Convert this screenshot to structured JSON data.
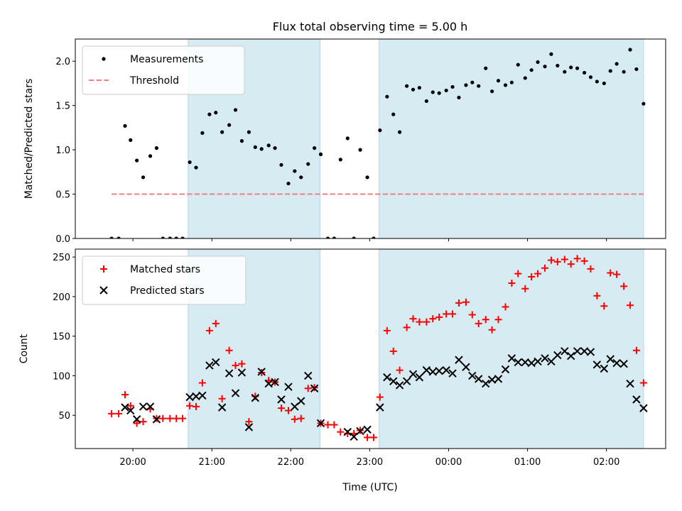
{
  "figure": {
    "title": "Flux total observing time = 5.00 h",
    "xlabel": "Time (UTC)"
  },
  "chart_data": [
    {
      "type": "scatter",
      "ylabel": "Matched/Predicted stars",
      "ylim": [
        0,
        2.25
      ],
      "yticks": [
        0.0,
        0.5,
        1.0,
        1.5,
        2.0
      ],
      "xlim": [
        19.27,
        26.75
      ],
      "grid": false,
      "legend": "upper-left",
      "shaded_spans": [
        [
          20.7,
          22.37
        ],
        [
          23.12,
          26.47
        ]
      ],
      "series": [
        {
          "name": "Measurements",
          "kind": "dots",
          "color": "#000000",
          "x": [
            19.73,
            19.82,
            19.9,
            19.97,
            20.05,
            20.13,
            20.22,
            20.3,
            20.38,
            20.47,
            20.55,
            20.63,
            20.72,
            20.8,
            20.88,
            20.97,
            21.05,
            21.13,
            21.22,
            21.3,
            21.38,
            21.47,
            21.55,
            21.63,
            21.72,
            21.8,
            21.88,
            21.97,
            22.05,
            22.13,
            22.22,
            22.3,
            22.38,
            22.47,
            22.55,
            22.63,
            22.72,
            22.8,
            22.88,
            22.97,
            23.05,
            23.13,
            23.22,
            23.3,
            23.38,
            23.47,
            23.55,
            23.63,
            23.72,
            23.8,
            23.88,
            23.97,
            24.05,
            24.13,
            24.22,
            24.3,
            24.38,
            24.47,
            24.55,
            24.63,
            24.72,
            24.8,
            24.88,
            24.97,
            25.05,
            25.13,
            25.22,
            25.3,
            25.38,
            25.47,
            25.55,
            25.63,
            25.72,
            25.8,
            25.88,
            25.97,
            26.05,
            26.13,
            26.22,
            26.3,
            26.38,
            26.47
          ],
          "y": [
            0.0,
            0.0,
            1.27,
            1.11,
            0.88,
            0.69,
            0.93,
            1.02,
            0.0,
            0.0,
            0.0,
            0.0,
            0.86,
            0.8,
            1.19,
            1.4,
            1.42,
            1.2,
            1.28,
            1.45,
            1.1,
            1.2,
            1.03,
            1.01,
            1.05,
            1.02,
            0.83,
            0.62,
            0.76,
            0.69,
            0.84,
            1.02,
            0.95,
            0.0,
            0.0,
            0.89,
            1.13,
            0.0,
            1.0,
            0.69,
            0.0,
            1.22,
            1.6,
            1.4,
            1.2,
            1.72,
            1.68,
            1.7,
            1.55,
            1.65,
            1.64,
            1.67,
            1.71,
            1.59,
            1.73,
            1.76,
            1.72,
            1.92,
            1.66,
            1.78,
            1.73,
            1.76,
            1.96,
            1.81,
            1.9,
            1.99,
            1.94,
            2.08,
            1.95,
            1.88,
            1.93,
            1.92,
            1.87,
            1.82,
            1.77,
            1.75,
            1.89,
            1.97,
            1.88,
            2.13,
            1.91,
            1.52
          ]
        },
        {
          "name": "Threshold",
          "kind": "dashed-line",
          "color": "#f08080",
          "x": [
            19.73,
            26.47
          ],
          "y": [
            0.5,
            0.5
          ]
        }
      ]
    },
    {
      "type": "scatter",
      "ylabel": "Count",
      "ylim": [
        8,
        260
      ],
      "yticks": [
        50,
        100,
        150,
        200,
        250
      ],
      "xlim": [
        19.27,
        26.75
      ],
      "xticks": [
        20,
        21,
        22,
        23,
        24,
        25,
        26
      ],
      "xticklabels": [
        "20:00",
        "21:00",
        "22:00",
        "23:00",
        "00:00",
        "01:00",
        "02:00"
      ],
      "grid": false,
      "legend": "upper-left",
      "shaded_spans": [
        [
          20.7,
          22.37
        ],
        [
          23.12,
          26.47
        ]
      ],
      "series": [
        {
          "name": "Matched stars",
          "marker": "plus",
          "color": "#ff0000",
          "x": [
            19.73,
            19.82,
            19.9,
            19.97,
            20.05,
            20.13,
            20.22,
            20.3,
            20.38,
            20.47,
            20.55,
            20.63,
            20.72,
            20.8,
            20.88,
            20.97,
            21.05,
            21.13,
            21.22,
            21.3,
            21.38,
            21.47,
            21.55,
            21.63,
            21.72,
            21.8,
            21.88,
            21.97,
            22.05,
            22.13,
            22.22,
            22.3,
            22.38,
            22.47,
            22.55,
            22.63,
            22.72,
            22.8,
            22.88,
            22.97,
            23.05,
            23.13,
            23.22,
            23.3,
            23.38,
            23.47,
            23.55,
            23.63,
            23.72,
            23.8,
            23.88,
            23.97,
            24.05,
            24.13,
            24.22,
            24.3,
            24.38,
            24.47,
            24.55,
            24.63,
            24.72,
            24.8,
            24.88,
            24.97,
            25.05,
            25.13,
            25.22,
            25.3,
            25.38,
            25.47,
            25.55,
            25.63,
            25.72,
            25.8,
            25.88,
            25.97,
            26.05,
            26.13,
            26.22,
            26.3,
            26.38,
            26.47
          ],
          "y": [
            52,
            52,
            76,
            62,
            40,
            42,
            58,
            46,
            46,
            46,
            46,
            46,
            62,
            61,
            91,
            157,
            166,
            71,
            132,
            113,
            115,
            42,
            74,
            104,
            94,
            92,
            59,
            56,
            45,
            46,
            84,
            85,
            40,
            38,
            38,
            29,
            27,
            27,
            31,
            22,
            22,
            73,
            157,
            131,
            107,
            161,
            172,
            168,
            168,
            172,
            174,
            178,
            178,
            192,
            193,
            177,
            166,
            171,
            158,
            171,
            187,
            217,
            229,
            210,
            225,
            229,
            236,
            246,
            244,
            247,
            241,
            248,
            245,
            235,
            201,
            188,
            230,
            228,
            213,
            189,
            132,
            91
          ]
        },
        {
          "name": "Predicted stars",
          "marker": "x",
          "color": "#000000",
          "x": [
            19.9,
            19.97,
            20.05,
            20.13,
            20.22,
            20.3,
            20.72,
            20.8,
            20.88,
            20.97,
            21.05,
            21.13,
            21.22,
            21.3,
            21.38,
            21.47,
            21.55,
            21.63,
            21.72,
            21.8,
            21.88,
            21.97,
            22.05,
            22.13,
            22.22,
            22.3,
            22.38,
            22.72,
            22.8,
            22.88,
            22.97,
            23.13,
            23.22,
            23.3,
            23.38,
            23.47,
            23.55,
            23.63,
            23.72,
            23.8,
            23.88,
            23.97,
            24.05,
            24.13,
            24.22,
            24.3,
            24.38,
            24.47,
            24.55,
            24.63,
            24.72,
            24.8,
            24.88,
            24.97,
            25.05,
            25.13,
            25.22,
            25.3,
            25.38,
            25.47,
            25.55,
            25.63,
            25.72,
            25.8,
            25.88,
            25.97,
            26.05,
            26.13,
            26.22,
            26.3,
            26.38,
            26.47
          ],
          "y": [
            60,
            56,
            45,
            61,
            61,
            45,
            73,
            74,
            75,
            113,
            117,
            60,
            103,
            78,
            104,
            35,
            72,
            105,
            90,
            92,
            70,
            86,
            61,
            68,
            100,
            84,
            40,
            29,
            23,
            30,
            32,
            60,
            98,
            93,
            88,
            93,
            102,
            98,
            107,
            105,
            106,
            107,
            103,
            120,
            111,
            100,
            96,
            90,
            95,
            96,
            108,
            122,
            117,
            117,
            116,
            118,
            122,
            118,
            126,
            131,
            125,
            131,
            131,
            130,
            114,
            109,
            121,
            116,
            115,
            90,
            70,
            59
          ]
        }
      ]
    }
  ]
}
